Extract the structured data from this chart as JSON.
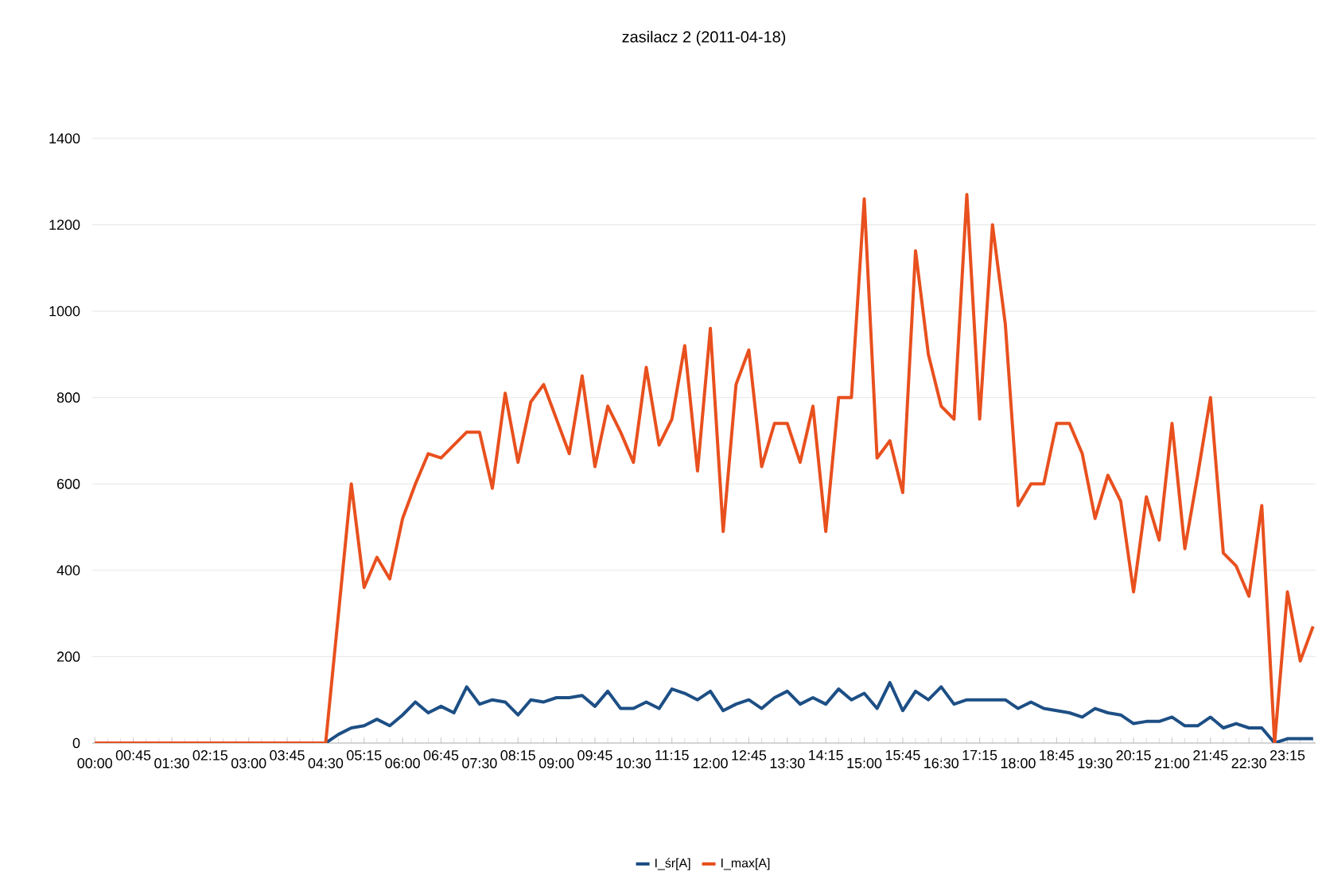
{
  "chart_data": {
    "type": "line",
    "title": "zasilacz 2 (2011-04-18)",
    "categories": [
      "00:00",
      null,
      null,
      "00:45",
      null,
      null,
      "01:30",
      null,
      null,
      "02:15",
      null,
      null,
      "03:00",
      null,
      null,
      "03:45",
      null,
      null,
      "04:30",
      null,
      null,
      "05:15",
      null,
      null,
      "06:00",
      null,
      null,
      "06:45",
      null,
      null,
      "07:30",
      null,
      null,
      "08:15",
      null,
      null,
      "09:00",
      null,
      null,
      "09:45",
      null,
      null,
      "10:30",
      null,
      null,
      "11:15",
      null,
      null,
      "12:00",
      null,
      null,
      "12:45",
      null,
      null,
      "13:30",
      null,
      null,
      "14:15",
      null,
      null,
      "15:00",
      null,
      null,
      "15:45",
      null,
      null,
      "16:30",
      null,
      null,
      "17:15",
      null,
      null,
      "18:00",
      null,
      null,
      "18:45",
      null,
      null,
      "19:30",
      null,
      null,
      "20:15",
      null,
      null,
      "21:00",
      null,
      null,
      "21:45",
      null,
      null,
      "22:30",
      null,
      null,
      "23:15",
      null,
      null
    ],
    "series": [
      {
        "name": "I_śr[A]",
        "color": "#1d4f85",
        "values": [
          null,
          null,
          null,
          null,
          null,
          null,
          null,
          null,
          null,
          null,
          null,
          null,
          null,
          null,
          null,
          null,
          null,
          null,
          0,
          20,
          35,
          40,
          55,
          40,
          65,
          95,
          70,
          85,
          70,
          130,
          90,
          100,
          95,
          65,
          100,
          95,
          105,
          105,
          110,
          85,
          120,
          80,
          80,
          95,
          80,
          125,
          115,
          100,
          120,
          75,
          90,
          100,
          80,
          105,
          120,
          90,
          105,
          90,
          125,
          100,
          115,
          80,
          140,
          75,
          120,
          100,
          130,
          90,
          100,
          100,
          100,
          100,
          80,
          95,
          80,
          75,
          70,
          60,
          80,
          70,
          65,
          45,
          50,
          50,
          60,
          40,
          40,
          60,
          35,
          45,
          35,
          35,
          0,
          10,
          10,
          10
        ]
      },
      {
        "name": "I_max[A]",
        "color": "#e8501e",
        "values": [
          0,
          0,
          0,
          0,
          0,
          0,
          0,
          0,
          0,
          0,
          0,
          0,
          0,
          0,
          0,
          0,
          0,
          0,
          0,
          300,
          600,
          360,
          430,
          380,
          520,
          600,
          670,
          660,
          690,
          720,
          720,
          590,
          810,
          650,
          790,
          830,
          750,
          670,
          850,
          640,
          780,
          720,
          650,
          870,
          690,
          750,
          920,
          630,
          960,
          490,
          830,
          910,
          640,
          740,
          740,
          650,
          780,
          490,
          800,
          800,
          1260,
          660,
          700,
          580,
          1140,
          900,
          780,
          750,
          1270,
          750,
          1200,
          970,
          550,
          600,
          600,
          740,
          740,
          670,
          520,
          620,
          560,
          350,
          570,
          470,
          740,
          450,
          620,
          800,
          440,
          410,
          340,
          550,
          0,
          350,
          190,
          270
        ]
      }
    ],
    "ylim": [
      0,
      1400
    ],
    "yticks": [
      0,
      200,
      400,
      600,
      800,
      1000,
      1200,
      1400
    ],
    "grid": "y",
    "legend": "bottom",
    "marker": "none",
    "line_style": "solid"
  }
}
